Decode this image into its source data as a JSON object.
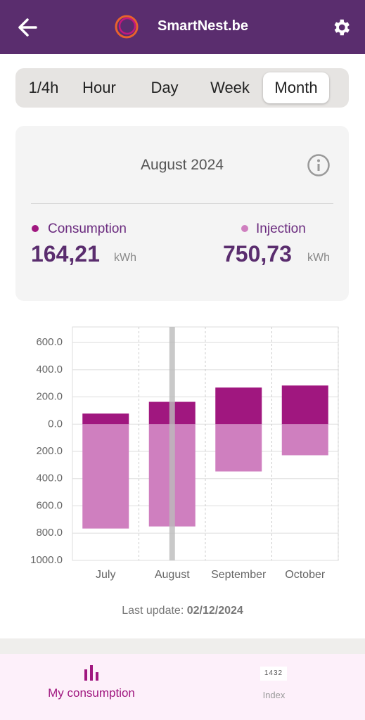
{
  "header": {
    "title": "SmartNest.be"
  },
  "tabs": [
    "1/4h",
    "Hour",
    "Day",
    "Week",
    "Month"
  ],
  "summary": {
    "period": "August 2024",
    "consumption": {
      "label": "Consumption",
      "value": "164,21",
      "unit": "kWh"
    },
    "injection": {
      "label": "Injection",
      "value": "750,73",
      "unit": "kWh"
    }
  },
  "chart": {
    "type": "bar",
    "categories": [
      "July",
      "August",
      "September",
      "October"
    ],
    "series": [
      {
        "name": "Consumption",
        "color": "#a0177f",
        "values": [
          78,
          164.21,
          269,
          284
        ]
      },
      {
        "name": "Injection",
        "color": "#cf7fbf",
        "values": [
          -766,
          -750.73,
          -347,
          -228
        ]
      }
    ],
    "ylim": [
      -1000,
      714
    ],
    "yticks": [
      {
        "value": 600,
        "label": "600.0"
      },
      {
        "value": 400,
        "label": "400.0"
      },
      {
        "value": 200,
        "label": "200.0"
      },
      {
        "value": 0,
        "label": "0.0"
      },
      {
        "value": -200,
        "label": "200.0"
      },
      {
        "value": -400,
        "label": "400.0"
      },
      {
        "value": -600,
        "label": "600.0"
      },
      {
        "value": -800,
        "label": "800.0"
      },
      {
        "value": -1000,
        "label": "1000.0"
      }
    ],
    "grid": true
  },
  "update": {
    "label": "Last update:",
    "date": "02/12/2024"
  },
  "nav": {
    "consumption": "My consumption",
    "index_icon": "1432",
    "index": "Index"
  }
}
